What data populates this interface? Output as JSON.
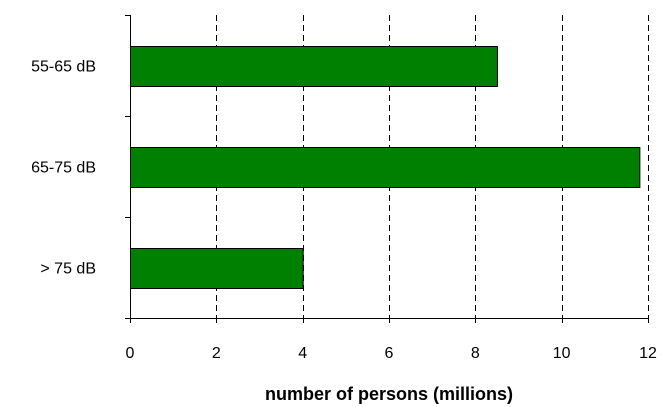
{
  "chart_data": {
    "type": "bar",
    "orientation": "horizontal",
    "categories": [
      "55-65 dB",
      "65-75 dB",
      "> 75 dB"
    ],
    "values": [
      8.5,
      11.8,
      4.0
    ],
    "xlabel": "number of persons (millions)",
    "ylabel": "",
    "xlim": [
      0,
      12
    ],
    "xticks": [
      "0",
      "2",
      "4",
      "6",
      "8",
      "10",
      "12"
    ],
    "grid": "vertical dashed",
    "legend": "none",
    "bar_color": "#008000",
    "bar_edge_color": "#000000"
  }
}
